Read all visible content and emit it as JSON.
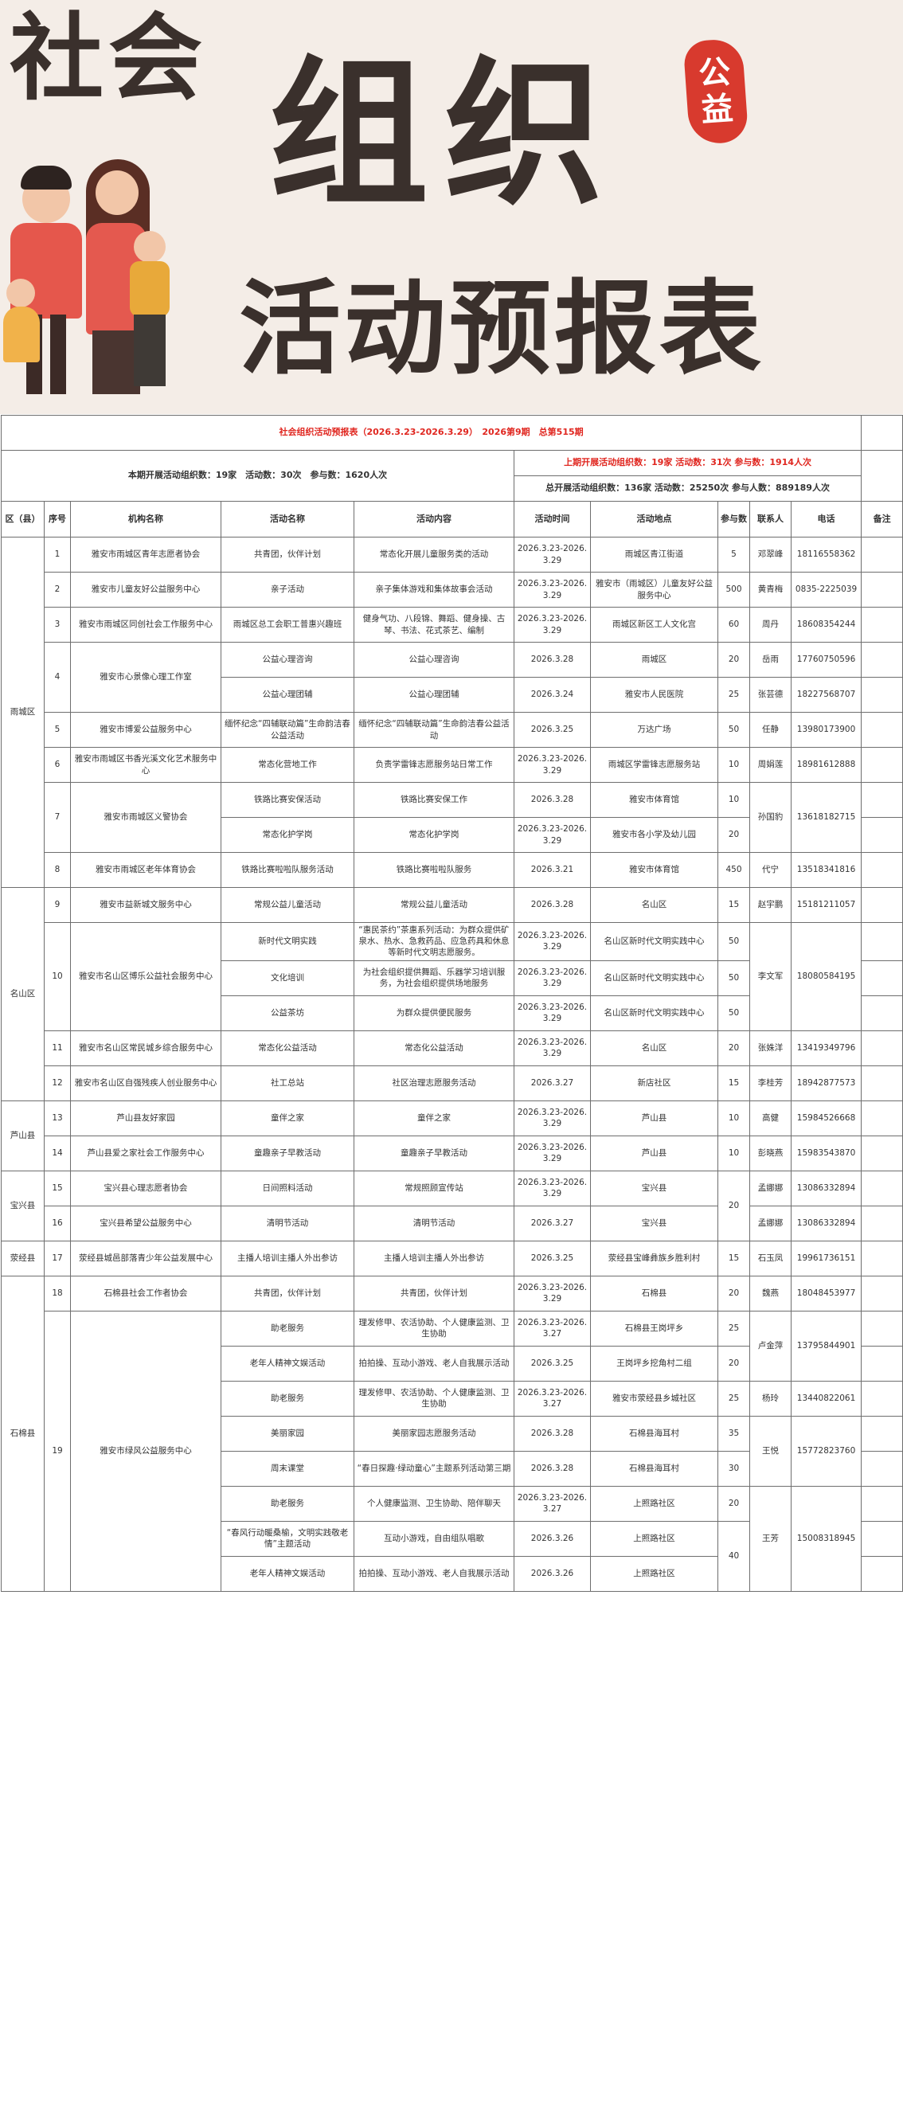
{
  "banner": {
    "title_line1": "社会",
    "title_line2": "组织",
    "title_line3": "活动预报表",
    "seal_text": [
      "公",
      "益"
    ]
  },
  "table": {
    "title": "社会组织活动预报表（2026.3.23-2026.3.29）　2026第9期　总第515期",
    "summary_current": "本期开展活动组织数：19家　活动数：30次　参与数：1620人次",
    "summary_previous": "上期开展活动组织数：19家 活动数：31次 参与数：1914人次",
    "summary_total": "总开展活动组织数：136家 活动数：25250次 参与人数：889189人次",
    "columns": [
      "区（县）",
      "序号",
      "机构名称",
      "活动名称",
      "活动内容",
      "活动时间",
      "活动地点",
      "参与数",
      "联系人",
      "电话",
      "备注"
    ],
    "rows": [
      [
        "雨城区",
        "1",
        "雅安市雨城区青年志愿者协会",
        "共青团，伙伴计划",
        "常态化开展儿童服务类的活动",
        "2026.3.23-2026.3.29",
        "雨城区青江街道",
        "5",
        "邓翠峰",
        "18116558362",
        ""
      ],
      [
        null,
        "2",
        "雅安市儿童友好公益服务中心",
        "亲子活动",
        "亲子集体游戏和集体故事会活动",
        "2026.3.23-2026.3.29",
        "雅安市（雨城区）儿童友好公益服务中心",
        "500",
        "黄青梅",
        "0835-2225039",
        ""
      ],
      [
        null,
        "3",
        "雅安市雨城区同创社会工作服务中心",
        "雨城区总工会职工普惠兴趣班",
        "健身气功、八段锦、舞蹈、健身操、古琴、书法、花式茶艺、编制",
        "2026.3.23-2026.3.29",
        "雨城区新区工人文化宫",
        "60",
        "周丹",
        "18608354244",
        ""
      ],
      [
        null,
        "4",
        "雅安市心景像心理工作室",
        "公益心理咨询",
        "公益心理咨询",
        "2026.3.28",
        "雨城区",
        "20",
        "岳雨",
        "17760750596",
        ""
      ],
      [
        null,
        null,
        null,
        "公益心理团辅",
        "公益心理团辅",
        "2026.3.24",
        "雅安市人民医院",
        "25",
        "张芸德",
        "18227568707",
        ""
      ],
      [
        null,
        "5",
        "雅安市博爱公益服务中心",
        "缅怀纪念“四辅联动篇”生命韵洁春公益活动",
        "缅怀纪念“四辅联动篇”生命韵洁春公益活动",
        "2026.3.25",
        "万达广场",
        "50",
        "任静",
        "13980173900",
        ""
      ],
      [
        null,
        "6",
        "雅安市雨城区书香光溪文化艺术服务中心",
        "常态化营地工作",
        "负责学雷锋志愿服务站日常工作",
        "2026.3.23-2026.3.29",
        "雨城区学雷锋志愿服务站",
        "10",
        "周娟莲",
        "18981612888",
        ""
      ],
      [
        null,
        "7",
        "雅安市雨城区义警协会",
        "铁路比赛安保活动",
        "铁路比赛安保工作",
        "2026.3.28",
        "雅安市体育馆",
        "10",
        "孙国豹",
        "13618182715",
        ""
      ],
      [
        null,
        null,
        null,
        "常态化护学岗",
        "常态化护学岗",
        "2026.3.23-2026.3.29",
        "雅安市各小学及幼儿园",
        "20",
        null,
        null,
        ""
      ],
      [
        null,
        "8",
        "雅安市雨城区老年体育协会",
        "铁路比赛啦啦队服务活动",
        "铁路比赛啦啦队服务",
        "2026.3.21",
        "雅安市体育馆",
        "450",
        "代宁",
        "13518341816",
        ""
      ],
      [
        "名山区",
        "9",
        "雅安市益新城文服务中心",
        "常规公益儿童活动",
        "常规公益儿童活动",
        "2026.3.28",
        "名山区",
        "15",
        "赵宇鹏",
        "15181211057",
        ""
      ],
      [
        null,
        "10",
        "雅安市名山区博乐公益社会服务中心",
        "新时代文明实践",
        "“惠民茶约”茶惠系列活动：为群众提供矿泉水、热水、急救药品、应急药具和休息等新时代文明志愿服务。",
        "2026.3.23-2026.3.29",
        "名山区新时代文明实践中心",
        "50",
        "李文军",
        "18080584195",
        ""
      ],
      [
        null,
        null,
        null,
        "文化培训",
        "为社会组织提供舞蹈、乐器学习培训服务，为社会组织提供场地服务",
        "2026.3.23-2026.3.29",
        "名山区新时代文明实践中心",
        "50",
        null,
        null,
        ""
      ],
      [
        null,
        null,
        null,
        "公益茶坊",
        "为群众提供便民服务",
        "2026.3.23-2026.3.29",
        "名山区新时代文明实践中心",
        "50",
        null,
        null,
        ""
      ],
      [
        null,
        "11",
        "雅安市名山区常民城乡综合服务中心",
        "常态化公益活动",
        "常态化公益活动",
        "2026.3.23-2026.3.29",
        "名山区",
        "20",
        "张姝洋",
        "13419349796",
        ""
      ],
      [
        null,
        "12",
        "雅安市名山区自强残疾人创业服务中心",
        "社工总站",
        "社区治理志愿服务活动",
        "2026.3.27",
        "新店社区",
        "15",
        "李桂芳",
        "18942877573",
        ""
      ],
      [
        "芦山县",
        "13",
        "芦山县友好家园",
        "童伴之家",
        "童伴之家",
        "2026.3.23-2026.3.29",
        "芦山县",
        "10",
        "高健",
        "15984526668",
        ""
      ],
      [
        null,
        "14",
        "芦山县爱之家社会工作服务中心",
        "童趣亲子早教活动",
        "童趣亲子早教活动",
        "2026.3.23-2026.3.29",
        "芦山县",
        "10",
        "彭晓燕",
        "15983543870",
        ""
      ],
      [
        "宝兴县",
        "15",
        "宝兴县心理志愿者协会",
        "日间照料活动",
        "常规照顾宣传站",
        "2026.3.23-2026.3.29",
        "宝兴县",
        "20",
        "孟娜娜",
        "13086332894",
        ""
      ],
      [
        null,
        "16",
        "宝兴县希望公益服务中心",
        "清明节活动",
        "清明节活动",
        "2026.3.27",
        "宝兴县",
        null,
        "孟娜娜",
        "13086332894",
        ""
      ],
      [
        "荥经县",
        "17",
        "荥经县城邑部落青少年公益发展中心",
        "主播人培训主播人外出参访",
        "主播人培训主播人外出参访",
        "2026.3.25",
        "荥经县宝峰彝族乡胜利村",
        "15",
        "石玉凤",
        "19961736151",
        ""
      ],
      [
        "石棉县",
        "18",
        "石棉县社会工作者协会",
        "共青团，伙伴计划",
        "共青团，伙伴计划",
        "2026.3.23-2026.3.29",
        "石棉县",
        "20",
        "魏燕",
        "18048453977",
        ""
      ],
      [
        null,
        "19",
        "雅安市绿风公益服务中心",
        "助老服务",
        "理发修甲、农活协助、个人健康监测、卫生协助",
        "2026.3.23-2026.3.27",
        "石棉县王岗坪乡",
        "25",
        "卢金萍",
        "13795844901",
        ""
      ],
      [
        null,
        null,
        null,
        "老年人精神文娱活动",
        "拍拍操、互动小游戏、老人自我展示活动",
        "2026.3.25",
        "王岗坪乡挖角村二组",
        "20",
        null,
        null,
        ""
      ],
      [
        null,
        null,
        null,
        "助老服务",
        "理发修甲、农活协助、个人健康监测、卫生协助",
        "2026.3.23-2026.3.27",
        "雅安市荥经县乡城社区",
        "25",
        "杨玲",
        "13440822061",
        ""
      ],
      [
        null,
        null,
        null,
        "美丽家园",
        "美丽家园志愿服务活动",
        "2026.3.28",
        "石棉县海耳村",
        "35",
        "王悦",
        "15772823760",
        ""
      ],
      [
        null,
        null,
        null,
        "周末课堂",
        "“春日探趣·绿动童心”主题系列活动第三期",
        "2026.3.28",
        "石棉县海耳村",
        "30",
        null,
        null,
        ""
      ],
      [
        null,
        null,
        null,
        "助老服务",
        "个人健康监测、卫生协助、陪伴聊天",
        "2026.3.23-2026.3.27",
        "上照路社区",
        "20",
        "王芳",
        "15008318945",
        ""
      ],
      [
        null,
        null,
        null,
        "“春风行动暖桑榆，文明实践敬老情”主题活动",
        "互动小游戏，自由组队唱歌",
        "2026.3.26",
        "上照路社区",
        "40",
        null,
        null,
        ""
      ],
      [
        null,
        null,
        null,
        "老年人精神文娱活动",
        "拍拍操、互动小游戏、老人自我展示活动",
        "2026.3.26",
        "上照路社区",
        null,
        null,
        null,
        ""
      ]
    ]
  },
  "colors": {
    "title_red": "#e0261f",
    "seal_red": "#d83a2e",
    "banner_bg": "#f4ede7",
    "text_dark": "#3a302c"
  }
}
